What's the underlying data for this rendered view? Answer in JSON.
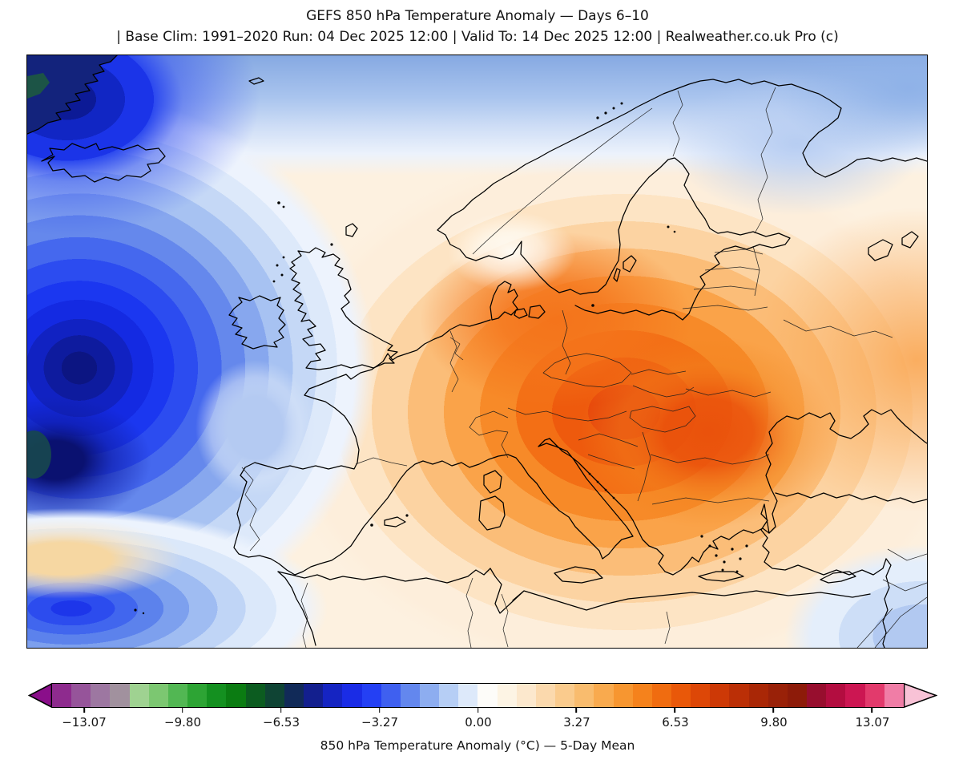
{
  "header": {
    "title_line1": "GEFS 850 hPa Temperature Anomaly — Days 6–10",
    "title_line2": "| Base Clim: 1991–2020 Run: 04 Dec 2025 12:00 | Valid To: 14 Dec 2025 12:00 | Realweather.co.uk Pro (c)"
  },
  "map": {
    "region": "Europe and North Atlantic",
    "features": [
      "Greenland edge",
      "Iceland",
      "British Isles",
      "Scandinavia",
      "Baltic",
      "Iberia",
      "Italy",
      "Balkans",
      "Greece",
      "Turkey",
      "Black Sea",
      "North Africa",
      "Levant"
    ],
    "anomaly_colors": {
      "cold_core": "#0c1582",
      "cold_mid": "#2c4cf0",
      "cold_light": "#a7c2f2",
      "neutral": "#fdf1e0",
      "warm_light": "#fbbd78",
      "warm_mid": "#f36f15",
      "warm_core": "#e7470b"
    }
  },
  "colorbar": {
    "label": "850 hPa Temperature Anomaly (°C) — 5-Day Mean",
    "ticks": [
      "−13.07",
      "−9.80",
      "−6.53",
      "−3.27",
      "0.00",
      "3.27",
      "6.53",
      "9.80",
      "13.07"
    ],
    "tick_first_pct": 3.76,
    "tick_step_pct": 11.56,
    "left_arrow_color": "#8a0e8a",
    "right_arrow_color": "#f8c2d6",
    "colors": [
      "#8e2b8e",
      "#96549a",
      "#9d77a1",
      "#a1919e",
      "#9fd291",
      "#7cc771",
      "#52b753",
      "#2da434",
      "#149020",
      "#0b7c12",
      "#0c5c20",
      "#0f4434",
      "#112a58",
      "#131f8e",
      "#1524c2",
      "#1a2ce6",
      "#2440f4",
      "#3f60f0",
      "#6387ee",
      "#8dadf0",
      "#b6cef5",
      "#dde9fa",
      "#fdfcf9",
      "#fdf4e4",
      "#fce8cd",
      "#fbd9ad",
      "#facb8d",
      "#f9bc6e",
      "#f9aa4e",
      "#f79630",
      "#f5821c",
      "#f06c10",
      "#e95809",
      "#dd4707",
      "#cd3906",
      "#bb2f06",
      "#a92706",
      "#992108",
      "#8d1b09",
      "#970e2e",
      "#b30d40",
      "#cc1652",
      "#e23a6c",
      "#f07da6"
    ]
  }
}
